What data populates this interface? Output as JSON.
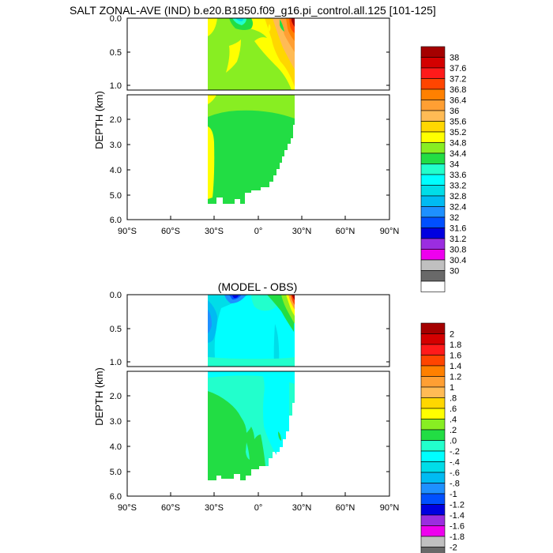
{
  "chart_data": [
    {
      "type": "heatmap",
      "title": "SALT ZONAL-AVE (IND) b.e20.B1850.f09_g16.pi_control.all.125 [101-125]",
      "ylabel": "DEPTH (km)",
      "xlabel": "",
      "xlim": [
        -90,
        90
      ],
      "ylim": [
        0,
        6
      ],
      "depth_split_km": 1.1,
      "upper_panel_yticks": [
        "0.0",
        "0.5",
        "1.0"
      ],
      "lower_panel_yticks": [
        "2.0",
        "3.0",
        "4.0",
        "5.0",
        "6.0"
      ],
      "xtick_values": [
        -90,
        -60,
        -30,
        0,
        30,
        60,
        90
      ],
      "xtick_labels": [
        "90°S",
        "60°S",
        "30°S",
        "0°",
        "30°N",
        "60°N",
        "90°N"
      ],
      "data_lat_range": [
        -34,
        25
      ],
      "levels": [
        "38",
        "37.6",
        "37.2",
        "36.8",
        "36.4",
        "36",
        "35.6",
        "35.2",
        "34.8",
        "34.4",
        "34",
        "33.6",
        "33.2",
        "32.8",
        "32.4",
        "32",
        "31.6",
        "31.2",
        "30.8",
        "30.4",
        "30"
      ],
      "colors": [
        "#a50000",
        "#d40000",
        "#ff1a1a",
        "#ff4500",
        "#ff8000",
        "#ff9f33",
        "#ffbb55",
        "#ffd700",
        "#ffff00",
        "#88ee22",
        "#22dd44",
        "#22ffcc",
        "#00ffff",
        "#00dde8",
        "#00bbf2",
        "#1e90ff",
        "#0050ff",
        "#0000e0",
        "#9b2de0",
        "#ee00ee",
        "#c0c0c0",
        "#696969",
        "#ffffff"
      ],
      "colorbar_colors_top_to_bottom": [
        "#a50000",
        "#d40000",
        "#ff1a1a",
        "#ff4500",
        "#ff8000",
        "#ff9f33",
        "#ffbb55",
        "#ffd700",
        "#ffff00",
        "#88ee22",
        "#22dd44",
        "#22ffcc",
        "#00ffff",
        "#00dde8",
        "#00bbf2",
        "#1e90ff",
        "#0050ff",
        "#0000e0",
        "#9b2de0",
        "#ee00ee",
        "#c0c0c0",
        "#696969",
        "#ffffff"
      ]
    },
    {
      "type": "heatmap",
      "title": "(MODEL - OBS)",
      "ylabel": "DEPTH (km)",
      "xlabel": "",
      "xlim": [
        -90,
        90
      ],
      "ylim": [
        0,
        6
      ],
      "depth_split_km": 1.1,
      "upper_panel_yticks": [
        "0.0",
        "0.5",
        "1.0"
      ],
      "lower_panel_yticks": [
        "2.0",
        "3.0",
        "4.0",
        "5.0",
        "6.0"
      ],
      "xtick_values": [
        -90,
        -60,
        -30,
        0,
        30,
        60,
        90
      ],
      "xtick_labels": [
        "90°S",
        "60°S",
        "30°S",
        "0°",
        "30°N",
        "60°N",
        "90°N"
      ],
      "data_lat_range": [
        -34,
        25
      ],
      "levels": [
        "2",
        "1.8",
        "1.6",
        "1.4",
        "1.2",
        "1",
        ".8",
        ".6",
        ".4",
        ".2",
        ".0",
        "-.2",
        "-.4",
        "-.6",
        "-.8",
        "-1",
        "-1.2",
        "-1.4",
        "-1.6",
        "-1.8",
        "-2"
      ],
      "colorbar_colors_top_to_bottom": [
        "#a50000",
        "#d40000",
        "#ff1a1a",
        "#ff4500",
        "#ff8000",
        "#ff9f33",
        "#ffbb55",
        "#ffd700",
        "#ffff00",
        "#88ee22",
        "#22dd44",
        "#22ffcc",
        "#00ffff",
        "#00dde8",
        "#00bbf2",
        "#1e90ff",
        "#0050ff",
        "#0000e0",
        "#9b2de0",
        "#ee00ee",
        "#c0c0c0",
        "#696969",
        "#ffffff"
      ]
    }
  ]
}
